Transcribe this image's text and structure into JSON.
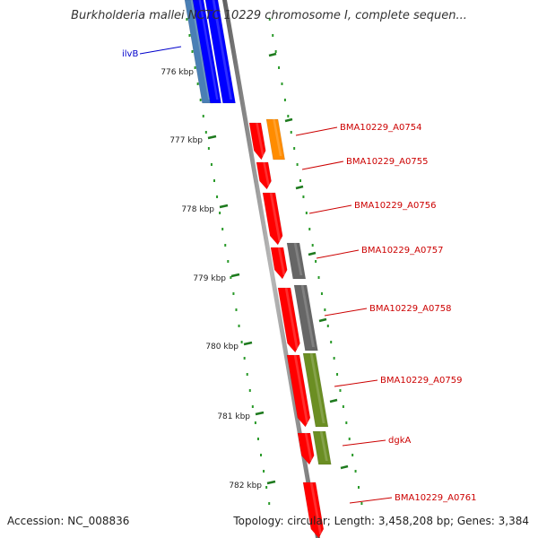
{
  "title": "Burkholderia mallei NCTC 10229 chromosome I, complete sequen...",
  "footer": {
    "accession": "Accession: NC_008836",
    "summary": "Topology: circular; Length: 3,458,208 bp; Genes: 3,384"
  },
  "colors": {
    "backbone": "#8c8c8c",
    "tick": "#1e7a1e",
    "dots": "#2a9a2a",
    "label_red": "#cc0000",
    "label_blue": "#0000cc",
    "cds_red": "#ff0000",
    "cds_blue": "#0000ff",
    "cds_steel": "#4a7fb5",
    "cds_orange": "#ff8c00",
    "cds_gray": "#666666",
    "cds_olive": "#6b8e23"
  },
  "ticks": [
    "776 kbp",
    "777 kbp",
    "778 kbp",
    "779 kbp",
    "780 kbp",
    "781 kbp",
    "782 kbp"
  ],
  "genes": [
    {
      "label": "ilvB",
      "color": "blue"
    },
    {
      "label": "BMA10229_A0754",
      "color": "red"
    },
    {
      "label": "BMA10229_A0755",
      "color": "red"
    },
    {
      "label": "BMA10229_A0756",
      "color": "red"
    },
    {
      "label": "BMA10229_A0757",
      "color": "red"
    },
    {
      "label": "BMA10229_A0758",
      "color": "red"
    },
    {
      "label": "BMA10229_A0759",
      "color": "red"
    },
    {
      "label": "dgkA",
      "color": "red"
    },
    {
      "label": "BMA10229_A0761",
      "color": "red"
    }
  ]
}
